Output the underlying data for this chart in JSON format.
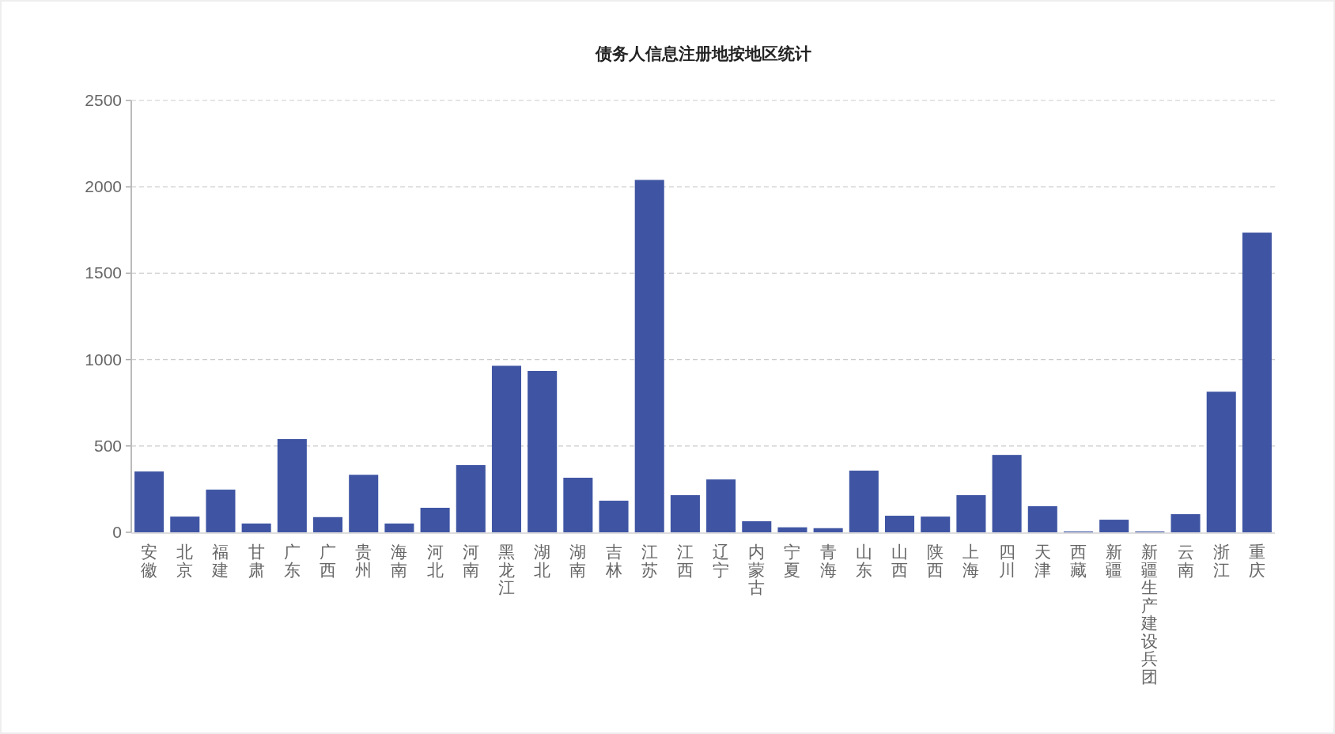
{
  "chart_data": {
    "type": "bar",
    "title": "债务人信息注册地按地区统计",
    "categories": [
      "安徽",
      "北京",
      "福建",
      "甘肃",
      "广东",
      "广西",
      "贵州",
      "海南",
      "河北",
      "河南",
      "黑龙江",
      "湖北",
      "湖南",
      "吉林",
      "江苏",
      "江西",
      "辽宁",
      "内蒙古",
      "宁夏",
      "青海",
      "山东",
      "山西",
      "陕西",
      "上海",
      "四川",
      "天津",
      "西藏",
      "新疆",
      "新疆生产建设兵团",
      "云南",
      "浙江",
      "重庆"
    ],
    "values": [
      352,
      91,
      247,
      51,
      540,
      88,
      333,
      51,
      142,
      389,
      964,
      934,
      316,
      183,
      2040,
      215,
      306,
      64,
      29,
      24,
      357,
      96,
      91,
      215,
      448,
      151,
      5,
      73,
      5,
      105,
      814,
      1735
    ],
    "color": "#3f55a3",
    "ylim": [
      0,
      2500
    ],
    "yticks": [
      0,
      500,
      1000,
      1500,
      2000,
      2500
    ],
    "grid": "y"
  }
}
